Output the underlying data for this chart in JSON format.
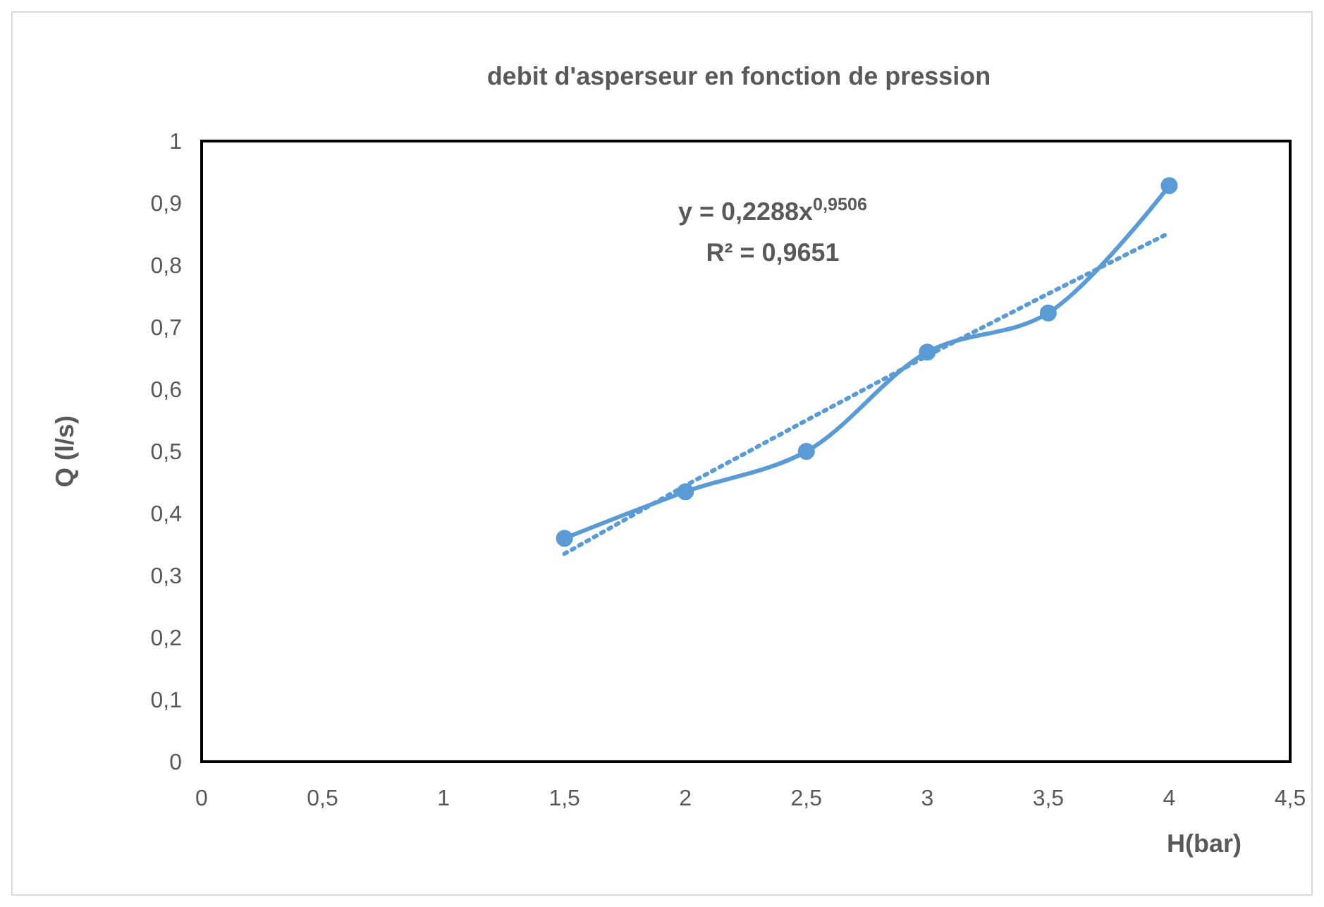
{
  "chart_data": {
    "type": "line",
    "title": "debit d'asperseur en fonction de pression",
    "xlabel": "H(bar)",
    "ylabel": "Q (l/s)",
    "xlim": [
      0,
      4.5
    ],
    "ylim": [
      0,
      1
    ],
    "xticks": [
      0,
      {
        "value": 0.5,
        "label": "0,5"
      },
      1,
      {
        "value": 1.5,
        "label": "1,5"
      },
      2,
      {
        "value": 2.5,
        "label": "2,5"
      },
      3,
      {
        "value": 3.5,
        "label": "3,5"
      },
      4,
      {
        "value": 4.5,
        "label": "4,5"
      }
    ],
    "yticks": [
      0,
      {
        "value": 0.1,
        "label": "0,1"
      },
      {
        "value": 0.2,
        "label": "0,2"
      },
      {
        "value": 0.3,
        "label": "0,3"
      },
      {
        "value": 0.4,
        "label": "0,4"
      },
      {
        "value": 0.5,
        "label": "0,5"
      },
      {
        "value": 0.6,
        "label": "0,6"
      },
      {
        "value": 0.7,
        "label": "0,7"
      },
      {
        "value": 0.8,
        "label": "0,8"
      },
      {
        "value": 0.9,
        "label": "0,9"
      },
      1
    ],
    "grid": false,
    "series": [
      {
        "color": "#5b9bd5",
        "x": [
          1.5,
          2,
          2.5,
          3,
          3.5,
          4
        ],
        "values": [
          0.36,
          0.435,
          0.5,
          0.66,
          0.723,
          0.928
        ],
        "marker": "circle",
        "line_style": "solid"
      },
      {
        "color": "#5b9bd5",
        "x": [
          1.5,
          2,
          2.5,
          3,
          3.5,
          4
        ],
        "values": [
          0.335,
          0.445,
          0.55,
          0.654,
          0.754,
          0.852
        ],
        "marker": "none",
        "line_style": "dotted"
      }
    ],
    "annotations": [
      "y = 0,2288x$^{0,9506}$",
      "R² = 0,9651"
    ]
  }
}
